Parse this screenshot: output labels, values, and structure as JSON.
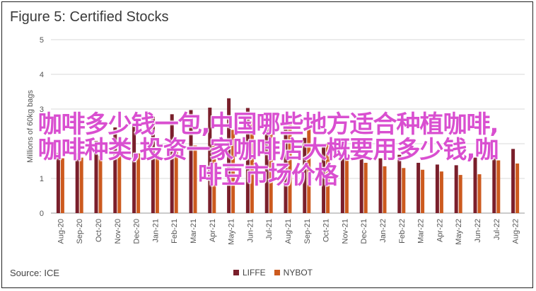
{
  "chart_data": {
    "type": "bar",
    "title": "Figure 5: Certified Stocks",
    "ylabel": "Millions of 60kg bags",
    "xlabel": "",
    "ylim": [
      0,
      5
    ],
    "yticks": [
      "0",
      "1",
      "2",
      "3",
      "4",
      "5"
    ],
    "grid": true,
    "legend_position": "bottom",
    "categories": [
      "Aug-20",
      "Sep-20",
      "Oct-20",
      "Nov-20",
      "Dec-20",
      "Jan-21",
      "Feb-21",
      "Mar-21",
      "Apr-21",
      "May-21",
      "Jun-21",
      "Jul-21",
      "Aug-21",
      "Sep-21",
      "Oct-21",
      "Nov-21",
      "Dec-21",
      "Jan-22",
      "Feb-22",
      "Mar-22",
      "Apr-22",
      "May-22",
      "Jun-22",
      "Jul-22",
      "Aug-22"
    ],
    "series": [
      {
        "name": "LIFFE",
        "color": "#7a1f2b",
        "values": [
          1.74,
          1.73,
          2.08,
          2.47,
          2.6,
          2.78,
          2.85,
          2.97,
          3.04,
          3.31,
          3.03,
          2.85,
          2.6,
          2.17,
          1.95,
          1.74,
          1.62,
          1.58,
          1.68,
          1.45,
          1.4,
          1.38,
          1.6,
          1.65,
          1.85
        ]
      },
      {
        "name": "NYBOT",
        "color": "#cc5a1e",
        "values": [
          1.58,
          1.6,
          1.65,
          1.68,
          1.72,
          1.75,
          1.85,
          1.95,
          2.12,
          2.4,
          2.64,
          2.64,
          2.6,
          2.53,
          2.01,
          1.6,
          1.45,
          1.35,
          1.3,
          1.25,
          1.2,
          1.1,
          1.12,
          1.52,
          1.43
        ]
      }
    ]
  },
  "source": "Source: ICE",
  "overlay_text": {
    "line1": "咖啡多少钱一包,中国哪些地方适合种植咖啡,",
    "line2": "咖啡种类,投资一家咖啡店大概要用多少钱,咖",
    "line3": "啡豆市场价格"
  }
}
